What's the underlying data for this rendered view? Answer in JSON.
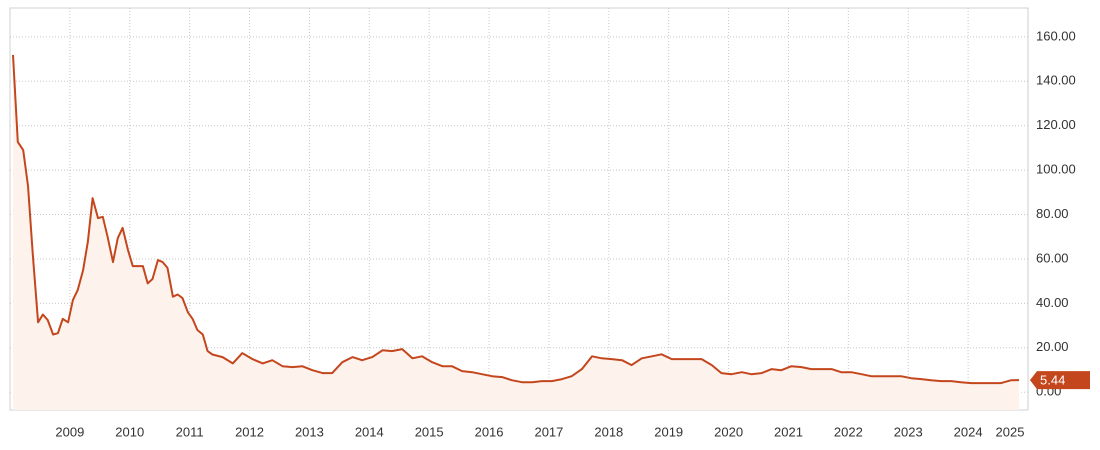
{
  "chart_data": {
    "type": "area",
    "x": [
      2008.05,
      2008.13,
      2008.22,
      2008.3,
      2008.38,
      2008.47,
      2008.55,
      2008.63,
      2008.72,
      2008.8,
      2008.88,
      2008.97,
      2009.05,
      2009.13,
      2009.22,
      2009.3,
      2009.38,
      2009.47,
      2009.55,
      2009.63,
      2009.72,
      2009.8,
      2009.88,
      2009.97,
      2010.05,
      2010.13,
      2010.22,
      2010.3,
      2010.38,
      2010.47,
      2010.55,
      2010.63,
      2010.72,
      2010.8,
      2010.88,
      2010.97,
      2011.05,
      2011.13,
      2011.22,
      2011.3,
      2011.38,
      2011.55,
      2011.72,
      2011.88,
      2012.05,
      2012.22,
      2012.38,
      2012.55,
      2012.72,
      2012.88,
      2013.05,
      2013.22,
      2013.38,
      2013.55,
      2013.72,
      2013.88,
      2014.05,
      2014.22,
      2014.38,
      2014.55,
      2014.72,
      2014.88,
      2015.05,
      2015.22,
      2015.38,
      2015.55,
      2015.72,
      2015.88,
      2016.05,
      2016.22,
      2016.38,
      2016.55,
      2016.72,
      2016.88,
      2017.05,
      2017.22,
      2017.38,
      2017.55,
      2017.72,
      2017.88,
      2018.05,
      2018.22,
      2018.38,
      2018.55,
      2018.72,
      2018.88,
      2019.05,
      2019.22,
      2019.38,
      2019.55,
      2019.72,
      2019.88,
      2020.05,
      2020.22,
      2020.38,
      2020.55,
      2020.72,
      2020.88,
      2021.05,
      2021.22,
      2021.38,
      2021.55,
      2021.72,
      2021.88,
      2022.05,
      2022.22,
      2022.38,
      2022.55,
      2022.72,
      2022.88,
      2023.05,
      2023.22,
      2023.38,
      2023.55,
      2023.72,
      2023.88,
      2024.05,
      2024.22,
      2024.38,
      2024.55,
      2024.72,
      2024.85
    ],
    "values": [
      151.9,
      112.7,
      109,
      93,
      62,
      31.5,
      35,
      32.5,
      26,
      26.6,
      33,
      31.5,
      41.5,
      46,
      55,
      67.6,
      87.4,
      78.4,
      79,
      70,
      58.6,
      69.4,
      74,
      64,
      56.8,
      56.8,
      56.8,
      49,
      51,
      59.5,
      58.6,
      56,
      43,
      44,
      42.4,
      36,
      33,
      28,
      26,
      18.5,
      17,
      15.8,
      13,
      17.6,
      14.9,
      13,
      14.4,
      11.7,
      11.3,
      11.7,
      9.9,
      8.6,
      8.6,
      13.5,
      15.8,
      14.4,
      15.8,
      18.9,
      18.5,
      19.4,
      15.3,
      16.2,
      13.5,
      11.7,
      11.7,
      9.5,
      9,
      8.1,
      7.2,
      6.8,
      5.4,
      4.5,
      4.5,
      5,
      5,
      5.9,
      7.2,
      10.4,
      16.2,
      15.3,
      14.9,
      14.4,
      12.2,
      15.3,
      16.2,
      17.1,
      14.9,
      14.9,
      14.9,
      14.9,
      12.2,
      8.6,
      8.1,
      9,
      8.1,
      8.6,
      10.4,
      9.9,
      11.7,
      11.3,
      10.4,
      10.4,
      10.4,
      9,
      9,
      8.1,
      7.2,
      7.2,
      7.2,
      7.2,
      6.3,
      5.9,
      5.4,
      5,
      5,
      4.5,
      4.1,
      4.1,
      4.1,
      4.1,
      5.4,
      5.44
    ],
    "color": "#c4461c",
    "fill": "#fdf2ec",
    "xlim": [
      2008,
      2025
    ],
    "xticks": [
      2009,
      2010,
      2011,
      2012,
      2013,
      2014,
      2015,
      2016,
      2017,
      2018,
      2019,
      2020,
      2021,
      2022,
      2023,
      2024,
      2025
    ],
    "ylim": [
      -8,
      173
    ],
    "yticks": [
      {
        "value": 0,
        "label": "0.00"
      },
      {
        "value": 20,
        "label": "20.00"
      },
      {
        "value": 40,
        "label": "40.00"
      },
      {
        "value": 60,
        "label": "60.00"
      },
      {
        "value": 80,
        "label": "80.00"
      },
      {
        "value": 100,
        "label": "100.00"
      },
      {
        "value": 120,
        "label": "120.00"
      },
      {
        "value": 140,
        "label": "140.00"
      },
      {
        "value": 160,
        "label": "160.00"
      }
    ],
    "grid": true
  }
}
